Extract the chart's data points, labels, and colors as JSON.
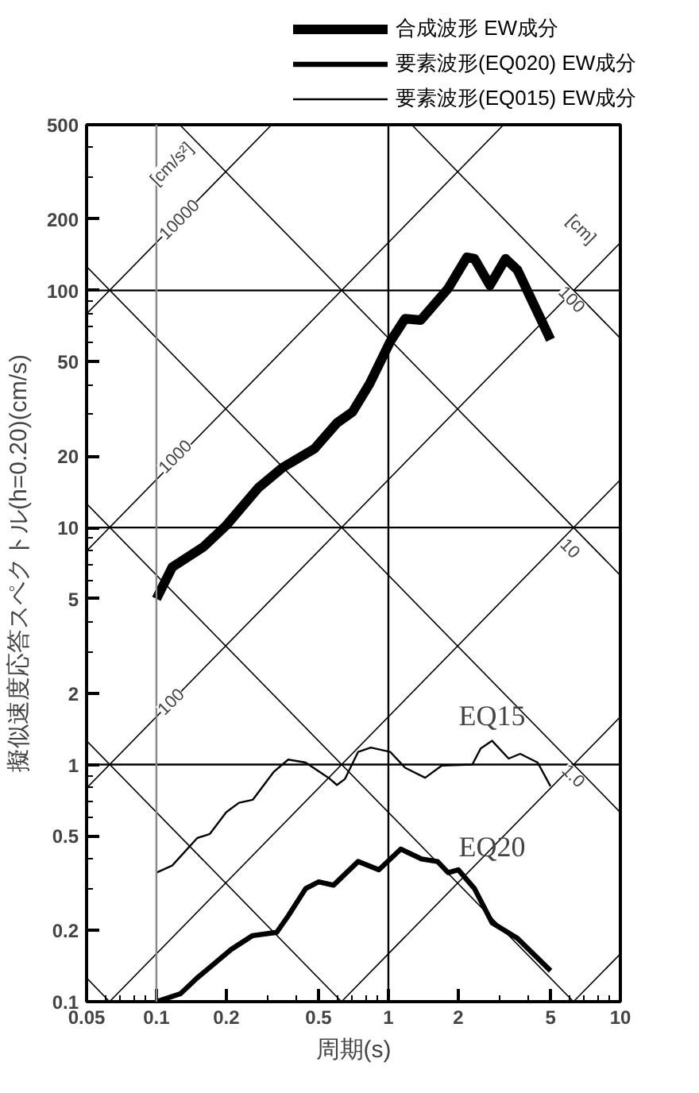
{
  "chart_data": {
    "type": "line",
    "xlabel": "周期(s)",
    "ylabel": "擬似速度応答スペクトル(h=0.20)(cm/s)",
    "log": "xy",
    "grid": false,
    "legend": "top",
    "xlim": [
      0.05,
      10
    ],
    "ylim": [
      0.1,
      500
    ],
    "xticks": [
      0.05,
      0.1,
      0.2,
      0.5,
      1,
      2,
      5,
      10
    ],
    "yticks": [
      0.1,
      0.2,
      0.5,
      1,
      2,
      5,
      10,
      20,
      50,
      100,
      200,
      500
    ],
    "ref_lines": [
      {
        "axis": "y",
        "value": 1,
        "color": "#000000"
      },
      {
        "axis": "y",
        "value": 10,
        "color": "#000000"
      },
      {
        "axis": "y",
        "value": 100,
        "color": "#000000"
      },
      {
        "axis": "x",
        "value": 1,
        "color": "#000000"
      },
      {
        "axis": "x",
        "value": 0.1,
        "color": "#888888"
      }
    ],
    "series": [
      {
        "name": "合成波形 EW成分",
        "color": "#000000",
        "x": [
          0.1,
          0.117,
          0.16,
          0.2,
          0.275,
          0.35,
          0.48,
          0.6,
          0.7,
          0.83,
          1.02,
          1.18,
          1.38,
          1.81,
          2.18,
          2.35,
          2.74,
          3.2,
          3.6,
          5
        ],
        "values": [
          5,
          6.8,
          8.3,
          10.2,
          14.7,
          17.9,
          21.5,
          27.6,
          30.7,
          40.4,
          61,
          76,
          75,
          102,
          138,
          136,
          105,
          136,
          122,
          62
        ]
      },
      {
        "name": "要素波形(EQ020) EW成分",
        "color": "#000000",
        "x": [
          0.1,
          0.127,
          0.15,
          0.21,
          0.26,
          0.33,
          0.37,
          0.44,
          0.5,
          0.58,
          0.74,
          0.91,
          1.13,
          1.39,
          1.63,
          1.81,
          2,
          2.35,
          2.8,
          3.6,
          5
        ],
        "values": [
          0.1,
          0.108,
          0.126,
          0.166,
          0.19,
          0.196,
          0.23,
          0.3,
          0.32,
          0.31,
          0.39,
          0.36,
          0.44,
          0.4,
          0.39,
          0.35,
          0.36,
          0.3,
          0.215,
          0.185,
          0.135
        ]
      },
      {
        "name": "要素波形(EQ015) EW成分",
        "color": "#000000",
        "x": [
          0.1,
          0.117,
          0.15,
          0.17,
          0.2,
          0.227,
          0.26,
          0.32,
          0.37,
          0.44,
          0.56,
          0.6,
          0.65,
          0.74,
          0.84,
          1.02,
          1.18,
          1.44,
          1.7,
          2.3,
          2.5,
          2.8,
          3.3,
          3.7,
          4.4,
          5
        ],
        "values": [
          0.35,
          0.375,
          0.49,
          0.51,
          0.63,
          0.69,
          0.71,
          0.93,
          1.05,
          1.02,
          0.87,
          0.82,
          0.87,
          1.13,
          1.18,
          1.13,
          0.97,
          0.88,
          0.99,
          1.0,
          1.17,
          1.26,
          1.06,
          1.11,
          1.02,
          0.81
        ]
      },
      {
        "color": "#000000",
        "x": [
          6.28,
          10
        ],
        "values": [
          0.1,
          0.159
        ]
      },
      {
        "color": "#000000",
        "x": [
          0.628,
          10
        ],
        "values": [
          0.1,
          1.59
        ]
      },
      {
        "color": "#000000",
        "x": [
          0.0628,
          10
        ],
        "values": [
          0.1,
          15.9
        ]
      },
      {
        "color": "#000000",
        "x": [
          0.05,
          10
        ],
        "values": [
          0.796,
          159
        ]
      },
      {
        "color": "#000000",
        "x": [
          0.05,
          3.14
        ],
        "values": [
          7.96,
          500
        ]
      },
      {
        "color": "#000000",
        "x": [
          0.05,
          0.314
        ],
        "values": [
          79.6,
          500
        ]
      },
      {
        "color": "#000000",
        "x": [
          0.05,
          0.0628
        ],
        "values": [
          0.126,
          0.1
        ]
      },
      {
        "color": "#000000",
        "x": [
          0.05,
          0.628
        ],
        "values": [
          1.26,
          0.1
        ]
      },
      {
        "color": "#000000",
        "x": [
          0.05,
          6.28
        ],
        "values": [
          12.6,
          0.1
        ]
      },
      {
        "color": "#000000",
        "x": [
          0.05,
          10
        ],
        "values": [
          126,
          0.628
        ]
      },
      {
        "color": "#000000",
        "x": [
          0.126,
          10
        ],
        "values": [
          500,
          6.28
        ]
      },
      {
        "color": "#000000",
        "x": [
          1.26,
          10
        ],
        "values": [
          500,
          62.8
        ]
      }
    ],
    "annotations": [
      {
        "text": "[cm/s²]",
        "x": 0.117,
        "y": 340
      },
      {
        "text": "10000",
        "x": 0.125,
        "y": 200
      },
      {
        "text": "1000",
        "x": 0.12,
        "y": 20
      },
      {
        "text": "100",
        "x": 0.115,
        "y": 1.85
      },
      {
        "text": "[cm]",
        "x": 6.75,
        "y": 180
      },
      {
        "text": "100",
        "x": 6.2,
        "y": 92
      },
      {
        "text": "10",
        "x": 6.1,
        "y": 8.2
      },
      {
        "text": "1.0",
        "x": 6.3,
        "y": 0.9
      },
      {
        "text": "EQ15",
        "x": 2.8,
        "y": 1.26
      },
      {
        "text": "EQ20",
        "x": 2.8,
        "y": 0.215
      }
    ]
  }
}
